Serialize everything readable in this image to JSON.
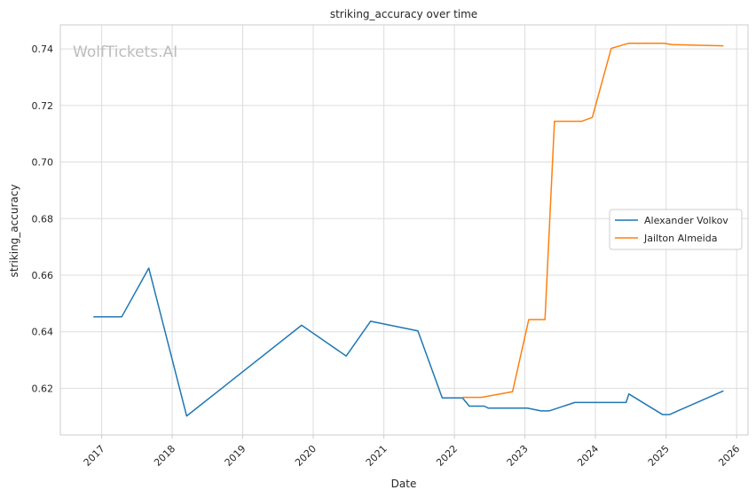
{
  "chart_data": {
    "type": "line",
    "title": "striking_accuracy over time",
    "xlabel": "Date",
    "ylabel": "striking_accuracy",
    "watermark": "WolfTickets.AI",
    "xlim": [
      "2016-06-01",
      "2026-03-01"
    ],
    "ylim": [
      0.6035,
      0.7485
    ],
    "x_ticks": [
      "2017",
      "2018",
      "2019",
      "2020",
      "2021",
      "2022",
      "2023",
      "2024",
      "2025",
      "2026"
    ],
    "y_ticks": [
      "0.62",
      "0.64",
      "0.66",
      "0.68",
      "0.70",
      "0.72",
      "0.74"
    ],
    "grid": true,
    "legend_position": "center-right",
    "series": [
      {
        "name": "Alexander Volkov",
        "color": "#1f77b4",
        "points": [
          {
            "x": "2016-11-19",
            "y": 0.6453
          },
          {
            "x": "2017-04-15",
            "y": 0.6453
          },
          {
            "x": "2017-09-02",
            "y": 0.6625
          },
          {
            "x": "2018-03-17",
            "y": 0.6102
          },
          {
            "x": "2019-11-02",
            "y": 0.6423
          },
          {
            "x": "2020-06-20",
            "y": 0.6314
          },
          {
            "x": "2020-10-24",
            "y": 0.6437
          },
          {
            "x": "2021-06-26",
            "y": 0.6403
          },
          {
            "x": "2021-10-30",
            "y": 0.6166
          },
          {
            "x": "2022-02-12",
            "y": 0.6166
          },
          {
            "x": "2022-03-19",
            "y": 0.6137
          },
          {
            "x": "2022-06-04",
            "y": 0.6137
          },
          {
            "x": "2022-06-25",
            "y": 0.613
          },
          {
            "x": "2023-01-14",
            "y": 0.613
          },
          {
            "x": "2023-03-25",
            "y": 0.612
          },
          {
            "x": "2023-05-06",
            "y": 0.612
          },
          {
            "x": "2023-09-16",
            "y": 0.615
          },
          {
            "x": "2024-06-08",
            "y": 0.615
          },
          {
            "x": "2024-06-22",
            "y": 0.618
          },
          {
            "x": "2024-12-14",
            "y": 0.6107
          },
          {
            "x": "2025-01-18",
            "y": 0.6107
          },
          {
            "x": "2025-10-25",
            "y": 0.6191
          }
        ]
      },
      {
        "name": "Jailton Almeida",
        "color": "#ff7f0e",
        "points": [
          {
            "x": "2022-02-12",
            "y": 0.6168
          },
          {
            "x": "2022-05-21",
            "y": 0.6168
          },
          {
            "x": "2022-10-29",
            "y": 0.6188
          },
          {
            "x": "2023-01-21",
            "y": 0.6443
          },
          {
            "x": "2023-04-15",
            "y": 0.6443
          },
          {
            "x": "2023-06-03",
            "y": 0.7144
          },
          {
            "x": "2023-10-21",
            "y": 0.7144
          },
          {
            "x": "2023-12-16",
            "y": 0.7158
          },
          {
            "x": "2024-03-23",
            "y": 0.7402
          },
          {
            "x": "2024-06-22",
            "y": 0.742
          },
          {
            "x": "2024-12-21",
            "y": 0.742
          },
          {
            "x": "2025-02-01",
            "y": 0.7415
          },
          {
            "x": "2025-10-25",
            "y": 0.7411
          }
        ]
      }
    ]
  }
}
